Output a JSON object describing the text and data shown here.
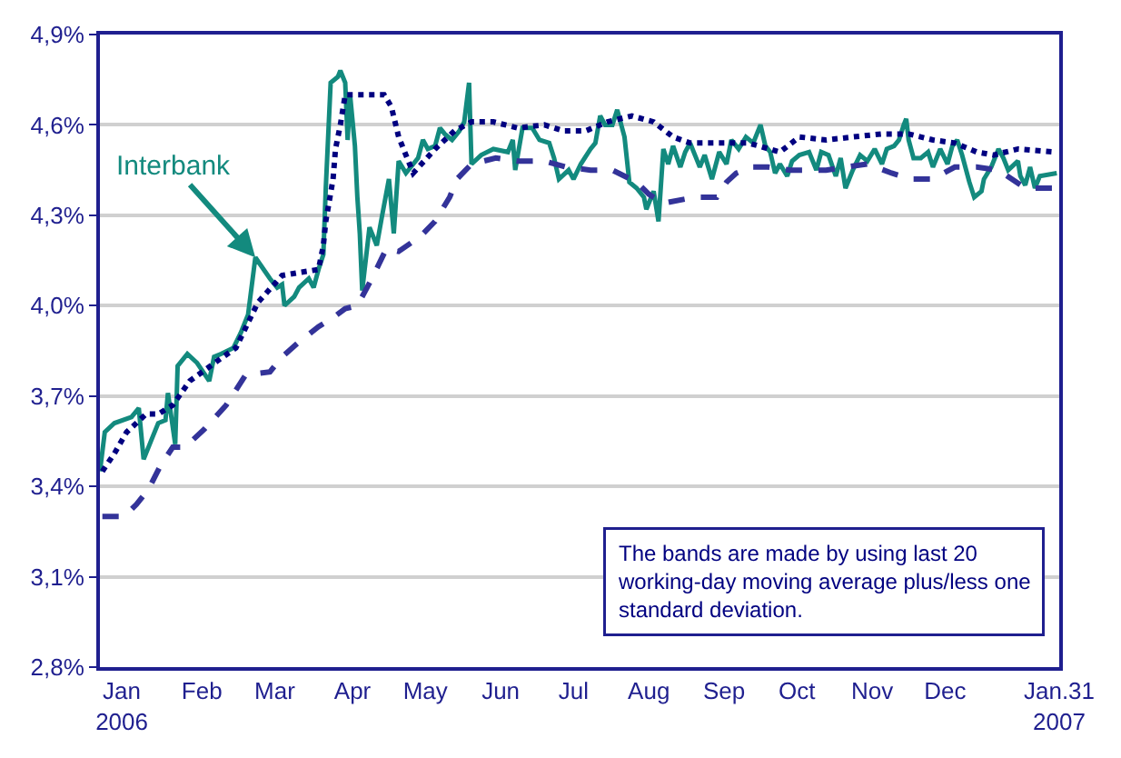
{
  "chart_data": {
    "type": "line",
    "grid": "y",
    "xlim": [
      "2006-01-01",
      "2007-01-31"
    ],
    "xticks": [
      {
        "value": "2006-01-10",
        "label": "Jan\n2006"
      },
      {
        "value": "2006-02-12",
        "label": "Feb"
      },
      {
        "value": "2006-03-14",
        "label": "Mar"
      },
      {
        "value": "2006-04-15",
        "label": "Apr"
      },
      {
        "value": "2006-05-15",
        "label": "May"
      },
      {
        "value": "2006-06-15",
        "label": "Jun"
      },
      {
        "value": "2006-07-15",
        "label": "Jul"
      },
      {
        "value": "2006-08-15",
        "label": "Aug"
      },
      {
        "value": "2006-09-15",
        "label": "Sep"
      },
      {
        "value": "2006-10-15",
        "label": "Oct"
      },
      {
        "value": "2006-11-15",
        "label": "Nov"
      },
      {
        "value": "2006-12-15",
        "label": "Dec"
      },
      {
        "value": "2007-01-31",
        "label": "Jan.31\n2007"
      }
    ],
    "ylim": [
      2.8,
      4.9
    ],
    "yticks": [
      {
        "value": 2.8,
        "label": "2,8%"
      },
      {
        "value": 3.1,
        "label": "3,1%"
      },
      {
        "value": 3.4,
        "label": "3,4%"
      },
      {
        "value": 3.7,
        "label": "3,7%"
      },
      {
        "value": 4.0,
        "label": "4,0%"
      },
      {
        "value": 4.3,
        "label": "4,3%"
      },
      {
        "value": 4.6,
        "label": "4,6%"
      },
      {
        "value": 4.9,
        "label": "4,9%"
      }
    ],
    "series": [
      {
        "color": "#138a7e",
        "line_style": "solid",
        "x": [
          "2006-01-01",
          "2006-01-03",
          "2006-01-07",
          "2006-01-14",
          "2006-01-17",
          "2006-01-19",
          "2006-01-22",
          "2006-01-25",
          "2006-01-28",
          "2006-01-29",
          "2006-02-01",
          "2006-02-02",
          "2006-02-06",
          "2006-02-10",
          "2006-02-15",
          "2006-02-17",
          "2006-02-20",
          "2006-02-25",
          "2006-02-28",
          "2006-03-03",
          "2006-03-06",
          "2006-03-12",
          "2006-03-15",
          "2006-03-17",
          "2006-03-18",
          "2006-03-22",
          "2006-03-24",
          "2006-03-28",
          "2006-03-30",
          "2006-04-01",
          "2006-04-03",
          "2006-04-04",
          "2006-04-06",
          "2006-04-09",
          "2006-04-10",
          "2006-04-12",
          "2006-04-13",
          "2006-04-14",
          "2006-04-16",
          "2006-04-17",
          "2006-04-18",
          "2006-04-19",
          "2006-04-22",
          "2006-04-25",
          "2006-04-27",
          "2006-04-30",
          "2006-05-02",
          "2006-05-04",
          "2006-05-07",
          "2006-05-10",
          "2006-05-12",
          "2006-05-14",
          "2006-05-16",
          "2006-05-19",
          "2006-05-21",
          "2006-05-23",
          "2006-05-26",
          "2006-05-29",
          "2006-05-31",
          "2006-06-02",
          "2006-06-03",
          "2006-06-07",
          "2006-06-12",
          "2006-06-18",
          "2006-06-20",
          "2006-06-21",
          "2006-06-24",
          "2006-06-28",
          "2006-07-01",
          "2006-07-05",
          "2006-07-07",
          "2006-07-09",
          "2006-07-13",
          "2006-07-15",
          "2006-07-18",
          "2006-07-22",
          "2006-07-24",
          "2006-07-26",
          "2006-07-28",
          "2006-07-31",
          "2006-08-02",
          "2006-08-05",
          "2006-08-07",
          "2006-08-10",
          "2006-08-13",
          "2006-08-14",
          "2006-08-17",
          "2006-08-19",
          "2006-08-21",
          "2006-08-23",
          "2006-08-25",
          "2006-08-28",
          "2006-08-30",
          "2006-09-01",
          "2006-09-05",
          "2006-09-07",
          "2006-09-10",
          "2006-09-13",
          "2006-09-16",
          "2006-09-18",
          "2006-09-21",
          "2006-09-24",
          "2006-09-27",
          "2006-09-30",
          "2006-10-02",
          "2006-10-04",
          "2006-10-06",
          "2006-10-08",
          "2006-10-11",
          "2006-10-13",
          "2006-10-16",
          "2006-10-20",
          "2006-10-23",
          "2006-10-25",
          "2006-10-28",
          "2006-10-31",
          "2006-11-02",
          "2006-11-04",
          "2006-11-07",
          "2006-11-10",
          "2006-11-13",
          "2006-11-16",
          "2006-11-19",
          "2006-11-21",
          "2006-11-24",
          "2006-11-26",
          "2006-11-28",
          "2006-11-29",
          "2006-11-30",
          "2006-12-02",
          "2006-12-05",
          "2006-12-08",
          "2006-12-10",
          "2006-12-13",
          "2006-12-16",
          "2006-12-18",
          "2006-12-20",
          "2006-12-22",
          "2006-12-25",
          "2006-12-27",
          "2006-12-30",
          "2006-12-31",
          "2007-01-03",
          "2007-01-06",
          "2007-01-08",
          "2007-01-10",
          "2007-01-14",
          "2007-01-15",
          "2007-01-17",
          "2007-01-19",
          "2007-01-21",
          "2007-01-23",
          "2007-01-30"
        ],
        "values": [
          3.45,
          3.58,
          3.61,
          3.63,
          3.66,
          3.49,
          3.55,
          3.61,
          3.62,
          3.71,
          3.54,
          3.8,
          3.84,
          3.81,
          3.75,
          3.83,
          3.84,
          3.86,
          3.91,
          3.97,
          4.16,
          4.09,
          4.06,
          4.07,
          4.0,
          4.03,
          4.06,
          4.09,
          4.06,
          4.12,
          4.17,
          4.39,
          4.74,
          4.76,
          4.78,
          4.74,
          4.55,
          4.7,
          4.53,
          4.36,
          4.24,
          4.05,
          4.26,
          4.2,
          4.29,
          4.42,
          4.24,
          4.48,
          4.44,
          4.47,
          4.49,
          4.55,
          4.52,
          4.53,
          4.59,
          4.57,
          4.55,
          4.58,
          4.61,
          4.74,
          4.47,
          4.5,
          4.52,
          4.51,
          4.55,
          4.45,
          4.59,
          4.59,
          4.55,
          4.54,
          4.49,
          4.42,
          4.45,
          4.42,
          4.47,
          4.52,
          4.54,
          4.63,
          4.6,
          4.6,
          4.65,
          4.56,
          4.41,
          4.39,
          4.36,
          4.32,
          4.38,
          4.28,
          4.52,
          4.47,
          4.53,
          4.46,
          4.51,
          4.54,
          4.46,
          4.5,
          4.42,
          4.51,
          4.47,
          4.55,
          4.52,
          4.56,
          4.54,
          4.6,
          4.53,
          4.51,
          4.44,
          4.47,
          4.43,
          4.48,
          4.5,
          4.51,
          4.45,
          4.51,
          4.5,
          4.43,
          4.49,
          4.39,
          4.45,
          4.5,
          4.48,
          4.52,
          4.47,
          4.52,
          4.53,
          4.55,
          4.6,
          4.62,
          4.55,
          4.49,
          4.49,
          4.51,
          4.46,
          4.52,
          4.47,
          4.53,
          4.55,
          4.5,
          4.41,
          4.36,
          4.38,
          4.42,
          4.46,
          4.52,
          4.49,
          4.45,
          4.48,
          4.43,
          4.4,
          4.46,
          4.39,
          4.43,
          4.44
        ]
      },
      {
        "color": "#000080",
        "line_style": "dotted",
        "x": [
          "2006-01-02",
          "2006-01-07",
          "2006-01-12",
          "2006-01-20",
          "2006-01-25",
          "2006-01-31",
          "2006-02-07",
          "2006-02-19",
          "2006-02-26",
          "2006-03-07",
          "2006-03-17",
          "2006-03-24",
          "2006-04-01",
          "2006-04-03",
          "2006-04-04",
          "2006-04-07",
          "2006-04-08",
          "2006-04-10",
          "2006-04-12",
          "2006-04-28",
          "2006-05-01",
          "2006-05-04",
          "2006-05-10",
          "2006-05-19",
          "2006-05-27",
          "2006-06-03",
          "2006-06-12",
          "2006-06-22",
          "2006-07-03",
          "2006-07-11",
          "2006-07-20",
          "2006-07-29",
          "2006-08-08",
          "2006-08-17",
          "2006-08-25",
          "2006-09-01",
          "2006-09-12",
          "2006-09-25",
          "2006-10-08",
          "2006-10-16",
          "2006-10-27",
          "2006-11-07",
          "2006-11-19",
          "2006-11-30",
          "2006-12-10",
          "2006-12-19",
          "2006-12-28",
          "2007-01-04",
          "2007-01-14",
          "2007-01-29"
        ],
        "values": [
          3.45,
          3.51,
          3.58,
          3.64,
          3.64,
          3.67,
          3.75,
          3.82,
          3.86,
          4.01,
          4.1,
          4.11,
          4.12,
          4.2,
          4.28,
          4.42,
          4.52,
          4.6,
          4.7,
          4.7,
          4.66,
          4.56,
          4.44,
          4.52,
          4.58,
          4.61,
          4.61,
          4.59,
          4.6,
          4.58,
          4.58,
          4.61,
          4.63,
          4.61,
          4.56,
          4.54,
          4.54,
          4.54,
          4.51,
          4.56,
          4.55,
          4.56,
          4.57,
          4.57,
          4.55,
          4.54,
          4.51,
          4.5,
          4.52,
          4.51
        ]
      },
      {
        "color": "#333399",
        "line_style": "dashed",
        "x": [
          "2006-01-02",
          "2006-01-11",
          "2006-01-16",
          "2006-01-21",
          "2006-01-26",
          "2006-01-31",
          "2006-02-05",
          "2006-02-13",
          "2006-02-22",
          "2006-03-02",
          "2006-03-12",
          "2006-03-17",
          "2006-03-24",
          "2006-04-01",
          "2006-04-07",
          "2006-04-12",
          "2006-04-17",
          "2006-04-23",
          "2006-04-29",
          "2006-05-04",
          "2006-05-13",
          "2006-05-19",
          "2006-05-25",
          "2006-05-28",
          "2006-06-03",
          "2006-06-13",
          "2006-06-22",
          "2006-07-03",
          "2006-07-12",
          "2006-07-22",
          "2006-07-31",
          "2006-08-10",
          "2006-08-15",
          "2006-08-21",
          "2006-09-03",
          "2006-09-12",
          "2006-09-16",
          "2006-09-20",
          "2006-09-26",
          "2006-10-03",
          "2006-10-12",
          "2006-10-20",
          "2006-10-27",
          "2006-11-04",
          "2006-11-13",
          "2006-11-23",
          "2006-12-01",
          "2006-12-10",
          "2006-12-19",
          "2006-12-28",
          "2007-01-06",
          "2007-01-17",
          "2007-01-29"
        ],
        "values": [
          3.3,
          3.3,
          3.34,
          3.39,
          3.47,
          3.53,
          3.53,
          3.59,
          3.67,
          3.77,
          3.78,
          3.83,
          3.88,
          3.93,
          3.96,
          3.99,
          4.0,
          4.09,
          4.19,
          4.18,
          4.23,
          4.28,
          4.36,
          4.42,
          4.47,
          4.49,
          4.48,
          4.48,
          4.46,
          4.45,
          4.45,
          4.41,
          4.37,
          4.34,
          4.36,
          4.36,
          4.41,
          4.44,
          4.46,
          4.46,
          4.45,
          4.45,
          4.45,
          4.46,
          4.47,
          4.44,
          4.42,
          4.42,
          4.46,
          4.46,
          4.45,
          4.39,
          4.39
        ]
      }
    ],
    "annotations": [
      {
        "text": "Interbank",
        "x": "2006-03-06",
        "y": 4.16
      },
      "The bands are made by using last 20\nworking-day moving average plus/less one\nstandard deviation."
    ]
  }
}
